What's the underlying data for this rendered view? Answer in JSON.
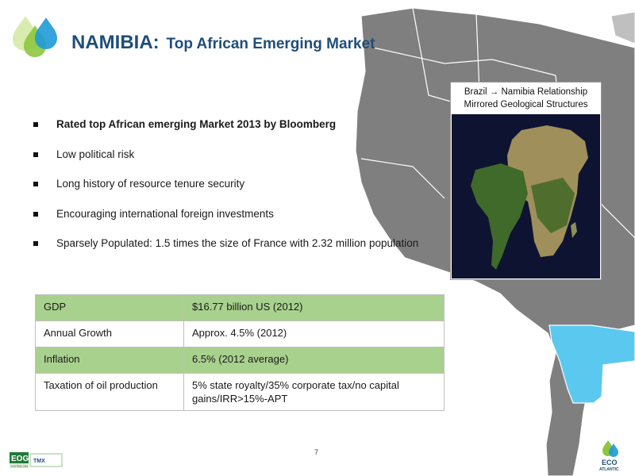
{
  "title": {
    "main": "NAMIBIA:",
    "sub": "Top African Emerging Market"
  },
  "bullets": [
    {
      "text": "Rated top African emerging Market 2013 by Bloomberg",
      "bold": true
    },
    {
      "text": "Low political risk",
      "bold": false
    },
    {
      "text": "Long history of resource tenure security",
      "bold": false
    },
    {
      "text": "Encouraging international foreign investments",
      "bold": false
    },
    {
      "text": "Sparsely Populated: 1.5 times the size of France with 2.32 million population",
      "bold": false
    }
  ],
  "stats_table": [
    {
      "label": "GDP",
      "value": "$16.77 billion US (2012)"
    },
    {
      "label": "Annual Growth",
      "value": "Approx. 4.5% (2012)"
    },
    {
      "label": "Inflation",
      "value": "6.5% (2012 average)"
    },
    {
      "label": "Taxation of oil production",
      "value": "5% state royalty/35% corporate tax/no capital gains/IRR>15%-APT"
    }
  ],
  "brazil_box": {
    "line1": "Brazil → Namibia Relationship",
    "line2": "Mirrored Geological Structures"
  },
  "page_number": "7",
  "logos": {
    "eog_text": "EOG",
    "eog_sub": "LISTED ON",
    "tmx_text": "TMX",
    "eco_line1": "ECO",
    "eco_line2": "ATLANTIC"
  },
  "colors": {
    "title": "#1f4e79",
    "table_green": "#a9d18e",
    "map_land": "#7f7f7f",
    "namibia_highlight": "#5bc8f0",
    "drop_blue": "#1e9ad6",
    "drop_green": "#8dc63f"
  }
}
